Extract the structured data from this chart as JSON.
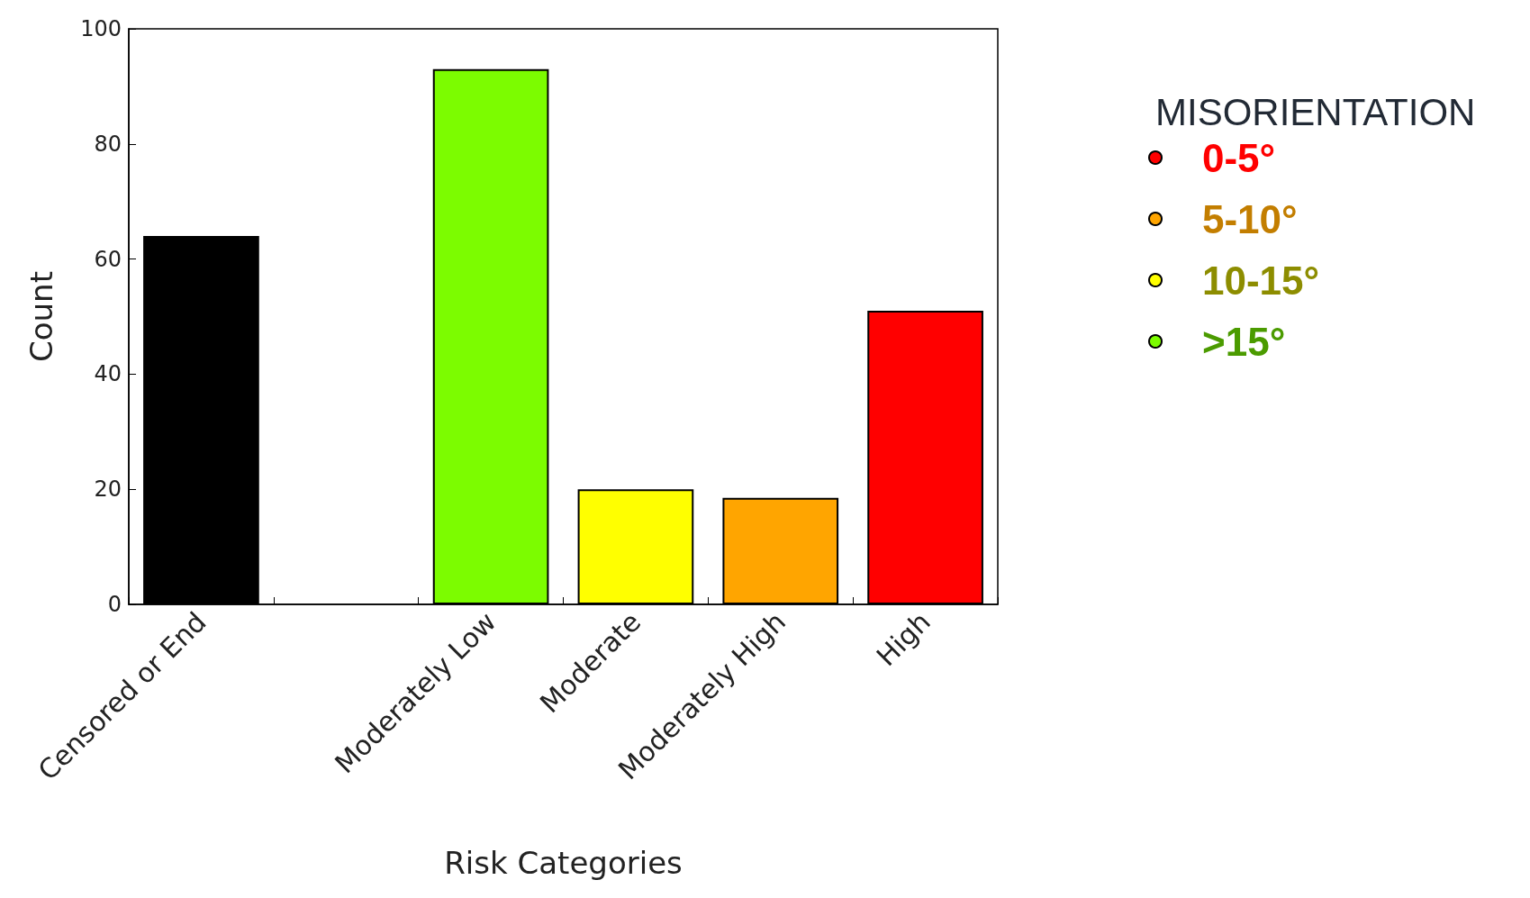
{
  "chart_data": {
    "type": "bar",
    "xlabel": "Risk Categories",
    "ylabel": "Count",
    "categories": [
      "Censored or End",
      null,
      "Moderately Low",
      "Moderate",
      "Moderately High",
      "High"
    ],
    "stacked": true,
    "series": [
      {
        "color": "#000000",
        "values": [
          64,
          null,
          null,
          null,
          null,
          null
        ]
      },
      {
        "name": "0-5°",
        "color": "#ff0000",
        "values": [
          null,
          null,
          null,
          null,
          null,
          51
        ]
      },
      {
        "name": "5-10°",
        "color": "#ffa500",
        "values": [
          null,
          null,
          null,
          null,
          18.5,
          null
        ]
      },
      {
        "name": "10-15°",
        "color": "#ffff00",
        "values": [
          null,
          null,
          null,
          20,
          null,
          null
        ]
      },
      {
        "name": ">15°",
        "color": "#7cfc00",
        "values": [
          null,
          null,
          93,
          null,
          null,
          null
        ]
      }
    ],
    "legend_title": "MISORIENTATION",
    "legend": "right",
    "ylim": [
      0,
      100
    ],
    "yticks": [
      0,
      20,
      40,
      60,
      80,
      100
    ],
    "grid": false
  }
}
